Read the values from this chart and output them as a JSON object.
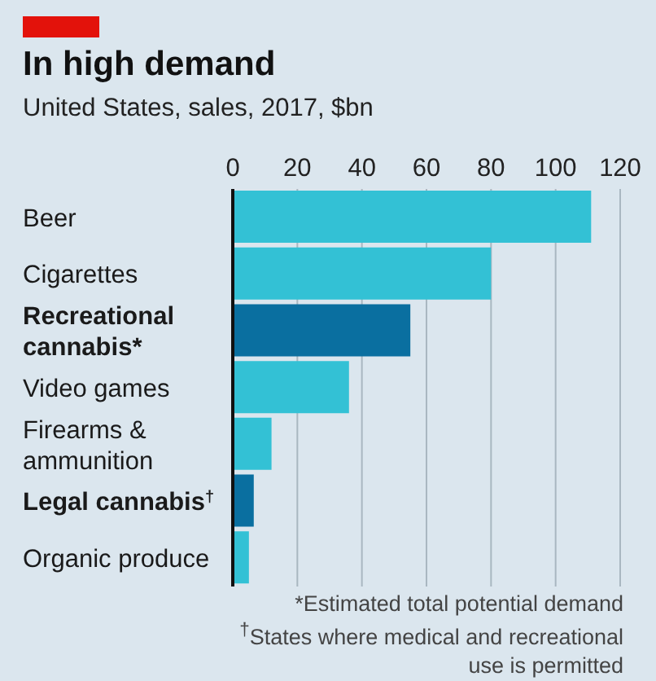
{
  "chart_data": {
    "type": "bar",
    "orientation": "horizontal",
    "title": "In high demand",
    "subtitle": "United States, sales, 2017, $bn",
    "categories": [
      "Beer",
      "Cigarettes",
      "Recreational cannabis*",
      "Video games",
      "Firearms & ammunition",
      "Legal cannabis$^{†}$",
      "Organic produce"
    ],
    "values": [
      111,
      80,
      55,
      36,
      12,
      6.5,
      5
    ],
    "colors": [
      "#33c1d5",
      "#33c1d5",
      "#0a6fa0",
      "#33c1d5",
      "#33c1d5",
      "#0a6fa0",
      "#33c1d5"
    ],
    "xlim": [
      0,
      120
    ],
    "xticks": [
      0,
      20,
      40,
      60,
      80,
      100,
      120
    ],
    "grid": "x",
    "annotations": [
      "*Estimated total potential demand",
      "$^{†}$States where medical and recreational use is permitted"
    ]
  }
}
